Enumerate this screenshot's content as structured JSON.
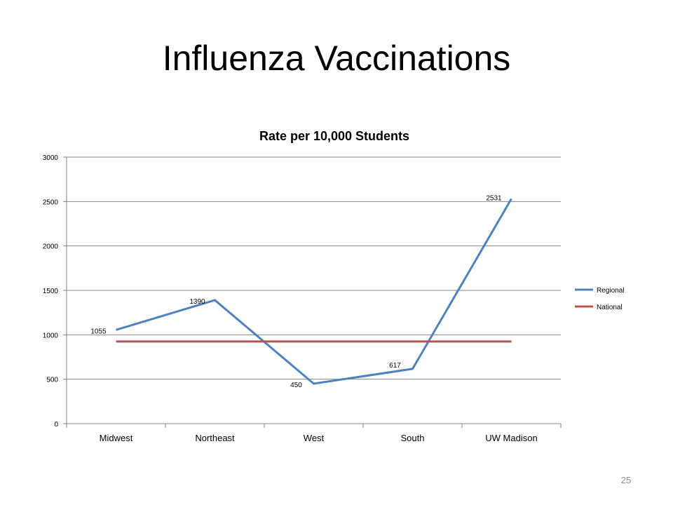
{
  "slide": {
    "title": "Influenza Vaccinations",
    "page_number": "25"
  },
  "chart_data": {
    "type": "line",
    "title": "Rate per 10,000 Students",
    "categories": [
      "Midwest",
      "Northeast",
      "West",
      "South",
      "UW Madison"
    ],
    "series": [
      {
        "name": "Regional",
        "values": [
          1055,
          1390,
          450,
          617,
          2531
        ],
        "color": "#4f81bd",
        "data_labels": [
          "1055",
          "1390",
          "450",
          "617",
          "2531"
        ]
      },
      {
        "name": "National",
        "values": [
          925,
          925,
          925,
          925,
          925
        ],
        "color": "#c0504d"
      }
    ],
    "ylim": [
      0,
      3000
    ],
    "yticks": [
      "0",
      "500",
      "1000",
      "1500",
      "2000",
      "2500",
      "3000"
    ],
    "grid": true,
    "legend_position": "right"
  }
}
